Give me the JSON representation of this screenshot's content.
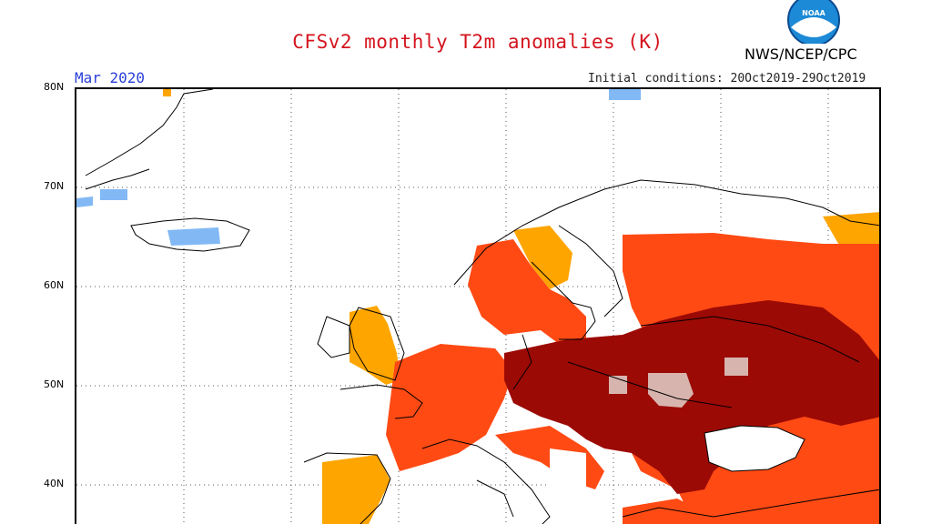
{
  "header": {
    "title": "CFSv2 monthly T2m anomalies (K)",
    "agency": "NWS/NCEP/CPC",
    "month": "Mar 2020",
    "initial_conditions": "Initial conditions: 20Oct2019-29Oct2019",
    "logo_text": "NOAA"
  },
  "axis": {
    "latitude_labels": [
      "80N",
      "70N",
      "60N",
      "50N",
      "40N"
    ]
  },
  "colors": {
    "anomaly_light_orange": "#ffa500",
    "anomaly_orange_red": "#ff4a14",
    "anomaly_dark_red": "#9c0a05",
    "anomaly_neutral_pink": "#d8b4ae",
    "anomaly_cold_blue": "#82b9f5",
    "title_red": "#d4141e",
    "month_blue": "#2a3fd8"
  }
}
